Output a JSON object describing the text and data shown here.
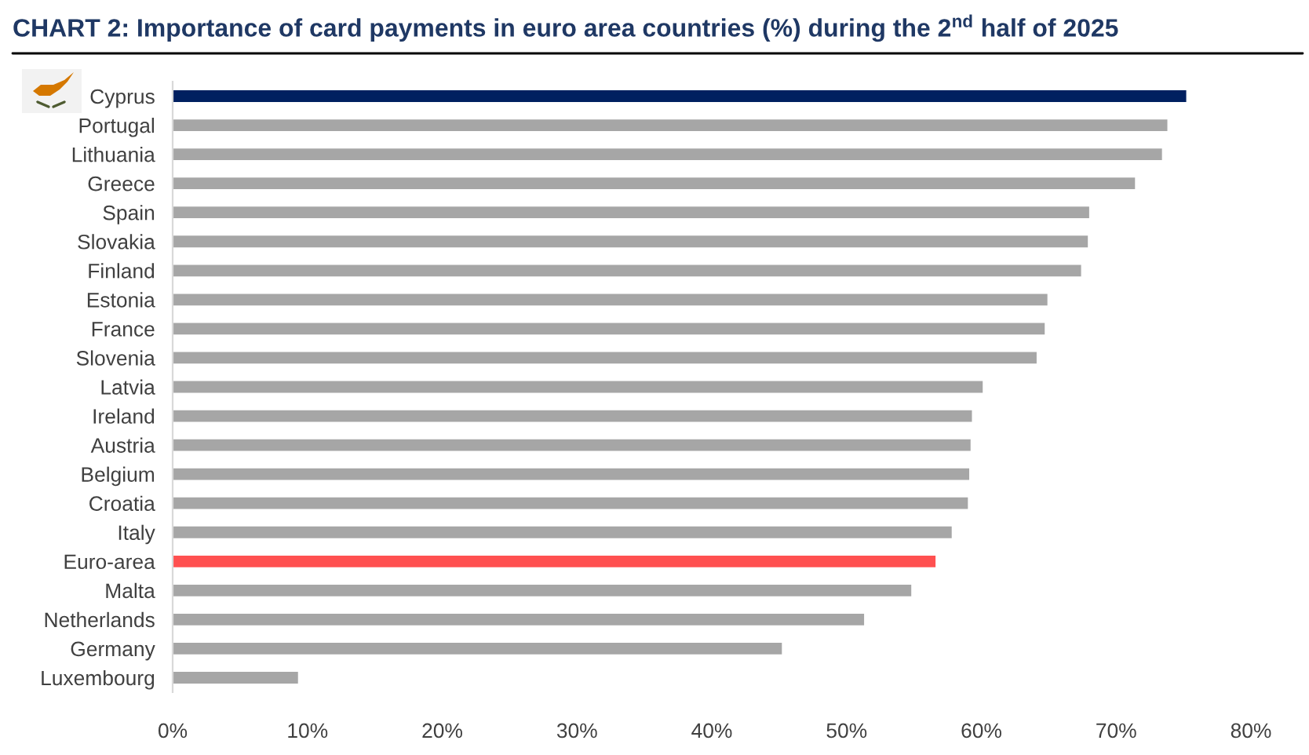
{
  "chart_data": {
    "type": "bar",
    "orientation": "horizontal",
    "title": "CHART 2: Importance of card payments in euro area countries (%) during the 2$^{nd}$ half of 2025",
    "categories": [
      "Cyprus",
      "Portugal",
      "Lithuania",
      "Greece",
      "Spain",
      "Slovakia",
      "Finland",
      "Estonia",
      "France",
      "Slovenia",
      "Latvia",
      "Ireland",
      "Austria",
      "Belgium",
      "Croatia",
      "Italy",
      "Euro-area",
      "Malta",
      "Netherlands",
      "Germany",
      "Luxembourg"
    ],
    "values": [
      75.2,
      73.8,
      73.4,
      71.4,
      68.0,
      67.9,
      67.4,
      64.9,
      64.7,
      64.1,
      60.1,
      59.3,
      59.2,
      59.1,
      59.0,
      57.8,
      56.6,
      54.8,
      51.3,
      45.2,
      9.3
    ],
    "colors": [
      "#002060",
      "#a6a6a6",
      "#a6a6a6",
      "#a6a6a6",
      "#a6a6a6",
      "#a6a6a6",
      "#a6a6a6",
      "#a6a6a6",
      "#a6a6a6",
      "#a6a6a6",
      "#a6a6a6",
      "#a6a6a6",
      "#a6a6a6",
      "#a6a6a6",
      "#a6a6a6",
      "#a6a6a6",
      "#ff5050",
      "#a6a6a6",
      "#a6a6a6",
      "#a6a6a6",
      "#a6a6a6"
    ],
    "xlim": [
      0,
      80
    ],
    "xticks": [
      {
        "value": 0,
        "label": "0%"
      },
      {
        "value": 10,
        "label": "10%"
      },
      {
        "value": 20,
        "label": "20%"
      },
      {
        "value": 30,
        "label": "30%"
      },
      {
        "value": 40,
        "label": "40%"
      },
      {
        "value": 50,
        "label": "50%"
      },
      {
        "value": 60,
        "label": "60%"
      },
      {
        "value": 70,
        "label": "70%"
      },
      {
        "value": 80,
        "label": "80%"
      }
    ],
    "grid": false
  }
}
